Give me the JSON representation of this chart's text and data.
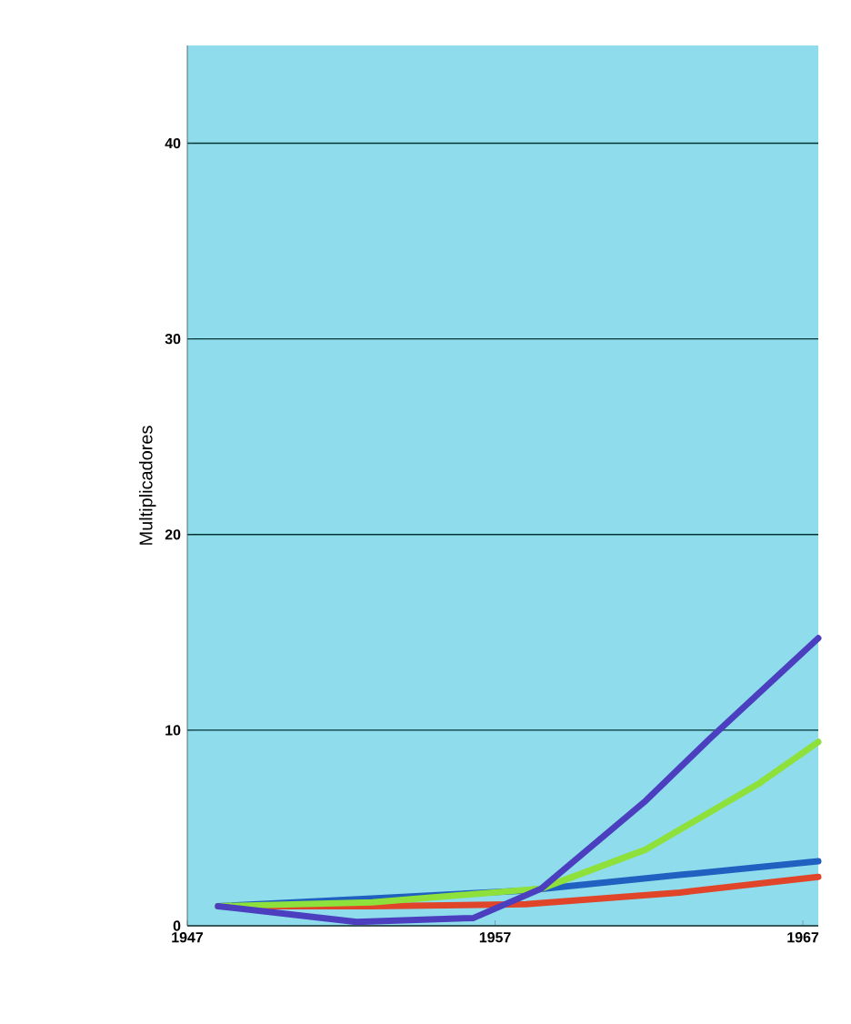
{
  "chart_data": {
    "type": "line",
    "ylabel": "Multiplicadores",
    "xlim": [
      1947,
      1967.5
    ],
    "xticks": [
      1947,
      1957,
      1967
    ],
    "ylim": [
      0,
      45
    ],
    "yticks": [
      0,
      10,
      20,
      30,
      40
    ],
    "grid": "y",
    "series": [
      {
        "color": "#e0452a",
        "x": [
          1948,
          1953,
          1958,
          1963,
          1967.5
        ],
        "values": [
          1.0,
          1.0,
          1.1,
          1.7,
          2.5
        ]
      },
      {
        "color": "#2060c0",
        "x": [
          1948,
          1953,
          1958,
          1963,
          1967.5
        ],
        "values": [
          1.0,
          1.4,
          1.8,
          2.6,
          3.3
        ]
      },
      {
        "color": "#8ee03a",
        "x": [
          1948,
          1953,
          1958.5,
          1961.9,
          1965.6,
          1967.5
        ],
        "values": [
          1.0,
          1.2,
          1.9,
          3.9,
          7.3,
          9.4
        ]
      },
      {
        "color": "#4b3fbf",
        "x": [
          1948,
          1952.5,
          1956.3,
          1958.5,
          1961.9,
          1964,
          1967.5
        ],
        "values": [
          1.0,
          0.2,
          0.4,
          1.9,
          6.4,
          9.6,
          14.7
        ]
      }
    ]
  }
}
